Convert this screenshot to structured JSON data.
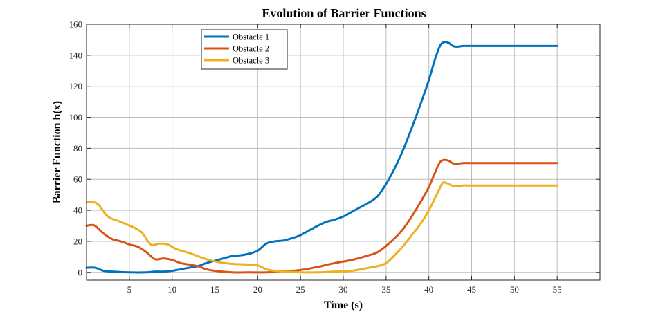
{
  "chart_data": {
    "type": "line",
    "title": "Evolution of Barrier Functions",
    "xlabel": "Time (s)",
    "ylabel": "Barrier Function h(x)",
    "xlim": [
      0,
      60
    ],
    "ylim": [
      -5,
      160
    ],
    "xticks": [
      5,
      10,
      15,
      20,
      25,
      30,
      35,
      40,
      45,
      50,
      55
    ],
    "yticks": [
      0,
      20,
      40,
      60,
      80,
      100,
      120,
      140,
      160
    ],
    "grid": true,
    "legend_position": "top-left",
    "series": [
      {
        "name": "Obstacle 1",
        "color": "#0072BD",
        "x": [
          0,
          1,
          2,
          3,
          5,
          7,
          8,
          9,
          10,
          11,
          12,
          13,
          14,
          15,
          16,
          17,
          18,
          19,
          20,
          21,
          22,
          23,
          24,
          25,
          26,
          27,
          28,
          29,
          30,
          31,
          32,
          33,
          34,
          35,
          36,
          37,
          38,
          39,
          40,
          40.7,
          41.3,
          41.8,
          42.3,
          42.8,
          43.3,
          44,
          45,
          46,
          50,
          55
        ],
        "y": [
          3,
          3,
          1,
          0.5,
          0,
          0,
          0.5,
          0.5,
          1,
          2,
          3,
          4,
          6,
          7.5,
          9,
          10.5,
          11,
          12,
          14,
          18.5,
          20,
          20.5,
          22,
          24,
          27,
          30,
          32.5,
          34,
          36,
          39,
          42,
          45,
          49,
          57,
          67,
          79,
          93,
          108,
          124,
          137,
          146,
          148.5,
          148,
          146,
          145.5,
          146,
          146,
          146,
          146,
          146
        ]
      },
      {
        "name": "Obstacle 2",
        "color": "#D95319",
        "x": [
          0,
          0.5,
          1,
          2,
          3,
          4,
          5,
          6,
          7,
          8,
          9,
          10,
          11,
          12,
          13,
          14,
          15,
          17,
          19,
          21,
          23,
          25,
          27,
          29,
          31,
          33,
          34,
          35,
          36,
          37,
          38,
          39,
          40,
          40.7,
          41.3,
          41.8,
          42.3,
          43,
          44,
          45,
          50,
          55
        ],
        "y": [
          30,
          30.5,
          30,
          25,
          21.5,
          20,
          18,
          16.5,
          13,
          8.5,
          9,
          8,
          6,
          5,
          4,
          2,
          1,
          0,
          0,
          0,
          0.5,
          1.5,
          3.5,
          6,
          8,
          11,
          13,
          17,
          22,
          28,
          36,
          45,
          55,
          64,
          71,
          72.5,
          72,
          70,
          70.5,
          70.5,
          70.5,
          70.5
        ]
      },
      {
        "name": "Obstacle 3",
        "color": "#EDB120",
        "x": [
          0,
          0.5,
          1,
          1.5,
          2.5,
          4,
          5.5,
          6.5,
          7.5,
          8.5,
          9.5,
          10.5,
          12,
          14,
          15.5,
          17,
          19,
          20,
          21,
          22,
          23,
          25,
          27,
          29,
          31,
          33,
          34,
          35,
          36,
          37,
          38,
          39,
          40,
          41,
          41.6,
          42.1,
          42.7,
          43.3,
          44,
          45,
          50,
          55
        ],
        "y": [
          45,
          45.5,
          45,
          43,
          36,
          32.5,
          29,
          25.5,
          18,
          18.5,
          18,
          15,
          12.5,
          8.5,
          6.5,
          5.5,
          5,
          4.5,
          2,
          1,
          0.5,
          0,
          0,
          0.5,
          1,
          3,
          4,
          6,
          11,
          17,
          24,
          31,
          40,
          51,
          57.5,
          57.5,
          56,
          55.5,
          56,
          56,
          56,
          56
        ]
      }
    ]
  }
}
